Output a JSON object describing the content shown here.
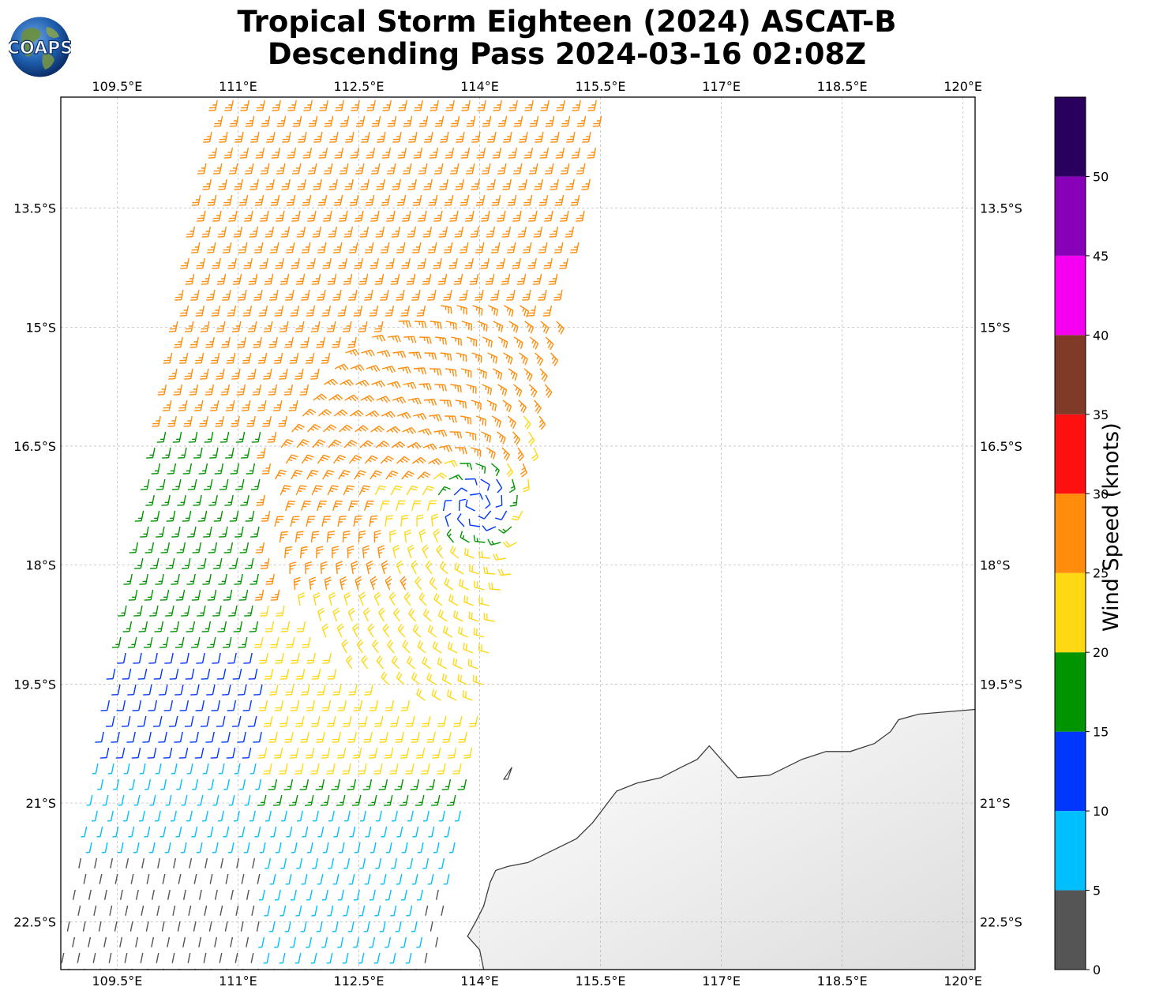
{
  "title": {
    "line1": "Tropical Storm Eighteen (2024) ASCAT-B",
    "line2": "Descending Pass 2024-03-16 02:08Z"
  },
  "logo": {
    "text": "COAPS",
    "icon": "globe-logo-icon"
  },
  "map": {
    "lon_range": [
      108.8,
      120.15
    ],
    "lat_range": [
      -23.1,
      -12.1
    ],
    "lon_ticks": [
      {
        "value": 109.5,
        "label": "109.5°E"
      },
      {
        "value": 111,
        "label": "111°E"
      },
      {
        "value": 112.5,
        "label": "112.5°E"
      },
      {
        "value": 114,
        "label": "114°E"
      },
      {
        "value": 115.5,
        "label": "115.5°E"
      },
      {
        "value": 117,
        "label": "117°E"
      },
      {
        "value": 118.5,
        "label": "118.5°E"
      },
      {
        "value": 120,
        "label": "120°E"
      }
    ],
    "lat_ticks": [
      {
        "value": -13.5,
        "label": "13.5°S"
      },
      {
        "value": -15,
        "label": "15°S"
      },
      {
        "value": -16.5,
        "label": "16.5°S"
      },
      {
        "value": -18,
        "label": "18°S"
      },
      {
        "value": -19.5,
        "label": "19.5°S"
      },
      {
        "value": -21,
        "label": "21°S"
      },
      {
        "value": -22.5,
        "label": "22.5°S"
      }
    ],
    "grid": "dashed",
    "storm_center": {
      "lon": 113.95,
      "lat": -17.25
    },
    "coastline": [
      [
        114.05,
        -23.1
      ],
      [
        114.0,
        -22.85
      ],
      [
        113.85,
        -22.68
      ],
      [
        113.95,
        -22.5
      ],
      [
        114.05,
        -22.3
      ],
      [
        114.13,
        -22.0
      ],
      [
        114.2,
        -21.85
      ],
      [
        114.35,
        -21.8
      ],
      [
        114.6,
        -21.75
      ],
      [
        114.9,
        -21.6
      ],
      [
        115.2,
        -21.45
      ],
      [
        115.4,
        -21.25
      ],
      [
        115.55,
        -21.05
      ],
      [
        115.7,
        -20.85
      ],
      [
        115.95,
        -20.75
      ],
      [
        116.25,
        -20.68
      ],
      [
        116.5,
        -20.55
      ],
      [
        116.7,
        -20.45
      ],
      [
        116.85,
        -20.28
      ],
      [
        117.2,
        -20.68
      ],
      [
        117.6,
        -20.65
      ],
      [
        118.0,
        -20.45
      ],
      [
        118.3,
        -20.35
      ],
      [
        118.6,
        -20.35
      ],
      [
        118.9,
        -20.25
      ],
      [
        119.1,
        -20.1
      ],
      [
        119.2,
        -19.95
      ],
      [
        119.45,
        -19.88
      ],
      [
        119.8,
        -19.85
      ],
      [
        120.15,
        -19.82
      ]
    ],
    "island": [
      [
        114.3,
        -20.7
      ],
      [
        114.4,
        -20.55
      ],
      [
        114.35,
        -20.7
      ]
    ]
  },
  "swath": {
    "description_data": "ASCAT-B wind barbs, descending pass",
    "top_edge": [
      [
        110.75,
        -12.1
      ],
      [
        115.6,
        -12.1
      ]
    ],
    "bottom_edge": [
      [
        108.8,
        -23.1
      ],
      [
        113.4,
        -23.1
      ]
    ]
  },
  "colorbar": {
    "label": "Wind Speed (knots)",
    "bins": [
      {
        "min": 0,
        "max": 5,
        "color": "#555555"
      },
      {
        "min": 5,
        "max": 10,
        "color": "#00bfff"
      },
      {
        "min": 10,
        "max": 15,
        "color": "#0037ff"
      },
      {
        "min": 15,
        "max": 20,
        "color": "#009400"
      },
      {
        "min": 20,
        "max": 25,
        "color": "#ffd814"
      },
      {
        "min": 25,
        "max": 30,
        "color": "#ff8c0a"
      },
      {
        "min": 30,
        "max": 35,
        "color": "#ff1010"
      },
      {
        "min": 35,
        "max": 40,
        "color": "#7f3a28"
      },
      {
        "min": 40,
        "max": 45,
        "color": "#f500f0"
      },
      {
        "min": 45,
        "max": 50,
        "color": "#8800b8"
      },
      {
        "min": 50,
        "max": 55,
        "color": "#2a005e"
      }
    ],
    "ticks": [
      "0",
      "5",
      "10",
      "15",
      "20",
      "25",
      "30",
      "35",
      "40",
      "45",
      "50"
    ]
  }
}
